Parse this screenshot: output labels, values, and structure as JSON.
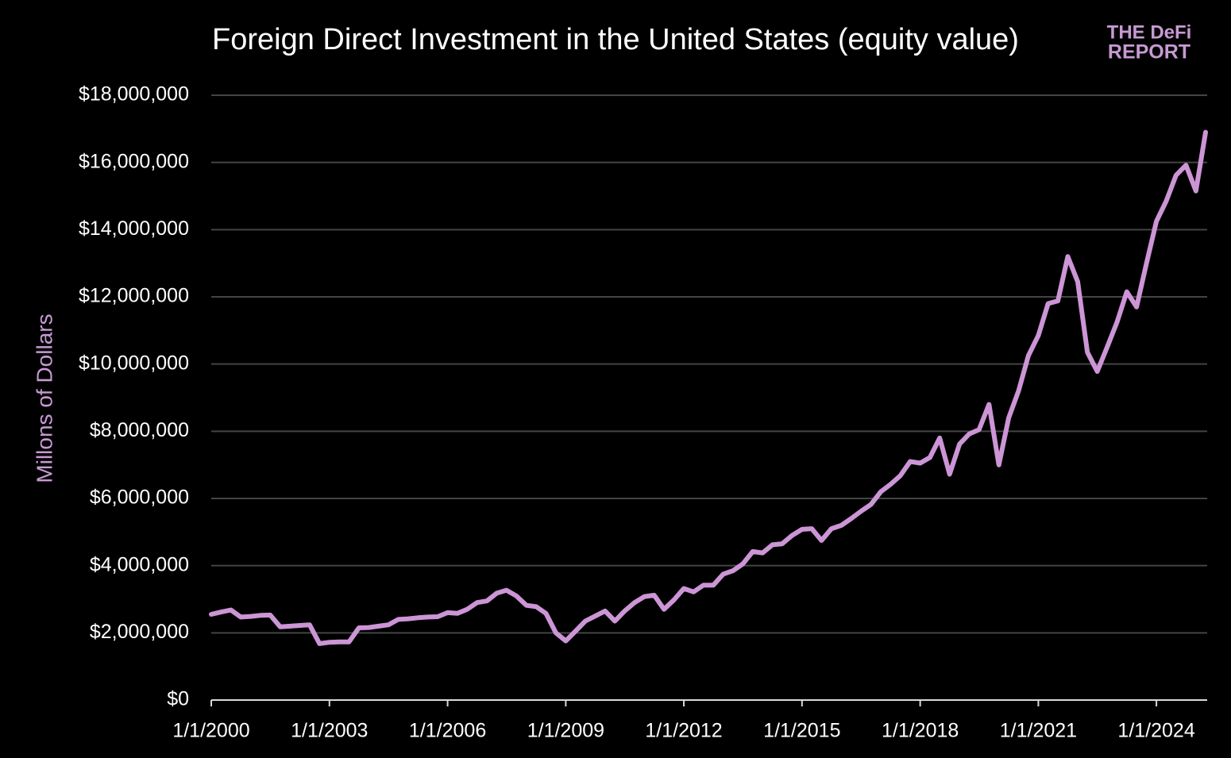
{
  "chart_data": {
    "type": "line",
    "title": "Foreign Direct Investment in the United States (equity value)",
    "y_label": "Millons of Dollars",
    "logo": {
      "line1": "THE DeFi",
      "line2": "REPORT"
    },
    "x": [
      "2000-01-01",
      "2000-04-01",
      "2000-07-01",
      "2000-10-01",
      "2001-01-01",
      "2001-04-01",
      "2001-07-01",
      "2001-10-01",
      "2002-01-01",
      "2002-04-01",
      "2002-07-01",
      "2002-10-01",
      "2003-01-01",
      "2003-04-01",
      "2003-07-01",
      "2003-10-01",
      "2004-01-01",
      "2004-04-01",
      "2004-07-01",
      "2004-10-01",
      "2005-01-01",
      "2005-04-01",
      "2005-07-01",
      "2005-10-01",
      "2006-01-01",
      "2006-04-01",
      "2006-07-01",
      "2006-10-01",
      "2007-01-01",
      "2007-04-01",
      "2007-07-01",
      "2007-10-01",
      "2008-01-01",
      "2008-04-01",
      "2008-07-01",
      "2008-10-01",
      "2009-01-01",
      "2009-04-01",
      "2009-07-01",
      "2009-10-01",
      "2010-01-01",
      "2010-04-01",
      "2010-07-01",
      "2010-10-01",
      "2011-01-01",
      "2011-04-01",
      "2011-07-01",
      "2011-10-01",
      "2012-01-01",
      "2012-04-01",
      "2012-07-01",
      "2012-10-01",
      "2013-01-01",
      "2013-04-01",
      "2013-07-01",
      "2013-10-01",
      "2014-01-01",
      "2014-04-01",
      "2014-07-01",
      "2014-10-01",
      "2015-01-01",
      "2015-04-01",
      "2015-07-01",
      "2015-10-01",
      "2016-01-01",
      "2016-04-01",
      "2016-07-01",
      "2016-10-01",
      "2017-01-01",
      "2017-04-01",
      "2017-07-01",
      "2017-10-01",
      "2018-01-01",
      "2018-04-01",
      "2018-07-01",
      "2018-10-01",
      "2019-01-01",
      "2019-04-01",
      "2019-07-01",
      "2019-10-01",
      "2020-01-01",
      "2020-04-01",
      "2020-07-01",
      "2020-10-01",
      "2021-01-01",
      "2021-04-01",
      "2021-07-01",
      "2021-10-01",
      "2022-01-01",
      "2022-04-01",
      "2022-07-01",
      "2022-10-01",
      "2023-01-01",
      "2023-04-01",
      "2023-07-01",
      "2023-10-01",
      "2024-01-01",
      "2024-04-01",
      "2024-07-01",
      "2024-10-01",
      "2025-01-01",
      "2025-04-01"
    ],
    "series": [
      {
        "name": "Foreign Direct Investment",
        "color": "#cc95d6",
        "values": [
          2550000,
          2620000,
          2680000,
          2470000,
          2490000,
          2520000,
          2530000,
          2180000,
          2200000,
          2220000,
          2240000,
          1680000,
          1720000,
          1730000,
          1730000,
          2150000,
          2160000,
          2200000,
          2240000,
          2400000,
          2420000,
          2450000,
          2470000,
          2480000,
          2600000,
          2580000,
          2700000,
          2900000,
          2950000,
          3180000,
          3270000,
          3100000,
          2820000,
          2780000,
          2580000,
          2000000,
          1760000,
          2050000,
          2350000,
          2500000,
          2650000,
          2350000,
          2650000,
          2900000,
          3080000,
          3120000,
          2700000,
          2980000,
          3320000,
          3220000,
          3420000,
          3420000,
          3750000,
          3850000,
          4050000,
          4420000,
          4380000,
          4620000,
          4650000,
          4900000,
          5080000,
          5100000,
          4750000,
          5100000,
          5200000,
          5400000,
          5620000,
          5820000,
          6200000,
          6420000,
          6680000,
          7100000,
          7050000,
          7220000,
          7800000,
          6720000,
          7620000,
          7920000,
          8050000,
          8800000,
          7000000,
          8400000,
          9200000,
          10250000,
          10850000,
          11800000,
          11880000,
          13200000,
          12450000,
          10350000,
          9780000,
          10500000,
          11250000,
          12150000,
          11700000,
          13000000,
          14250000,
          14850000,
          15620000,
          15920000,
          15150000,
          16900000
        ]
      }
    ],
    "xlim": [
      "2000-01-01",
      "2025-04-01"
    ],
    "xticks": [
      {
        "value": "2000-01-01",
        "label": "1/1/2000"
      },
      {
        "value": "2003-01-01",
        "label": "1/1/2003"
      },
      {
        "value": "2006-01-01",
        "label": "1/1/2006"
      },
      {
        "value": "2009-01-01",
        "label": "1/1/2009"
      },
      {
        "value": "2012-01-01",
        "label": "1/1/2012"
      },
      {
        "value": "2015-01-01",
        "label": "1/1/2015"
      },
      {
        "value": "2018-01-01",
        "label": "1/1/2018"
      },
      {
        "value": "2021-01-01",
        "label": "1/1/2021"
      },
      {
        "value": "2024-01-01",
        "label": "1/1/2024"
      }
    ],
    "ylim": [
      0,
      18000000
    ],
    "yticks": [
      {
        "value": 0,
        "label": "$0"
      },
      {
        "value": 2000000,
        "label": "$2,000,000"
      },
      {
        "value": 4000000,
        "label": "$4,000,000"
      },
      {
        "value": 6000000,
        "label": "$6,000,000"
      },
      {
        "value": 8000000,
        "label": "$8,000,000"
      },
      {
        "value": 10000000,
        "label": "$10,000,000"
      },
      {
        "value": 12000000,
        "label": "$12,000,000"
      },
      {
        "value": 14000000,
        "label": "$14,000,000"
      },
      {
        "value": 16000000,
        "label": "$16,000,000"
      },
      {
        "value": 18000000,
        "label": "$18,000,000"
      }
    ],
    "grid": true
  }
}
